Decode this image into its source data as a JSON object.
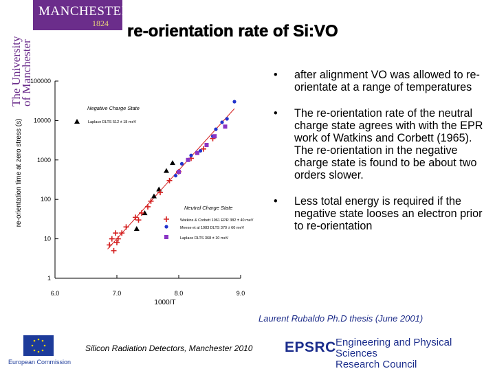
{
  "header": {
    "logo_main": "MANCHESTER",
    "logo_year": "1824",
    "vertical_text_1": "The University",
    "vertical_text_2": "of Manchester",
    "title": "re-orientation rate of Si:VO"
  },
  "bullets": [
    "after alignment VO was allowed to re-orientate at a range of temperatures",
    "The re-orientation rate of the neutral charge state agrees with with the EPR work of Watkins and Corbett (1965). The re-orientation in the negative charge state is found to be about two orders slower.",
    "Less total energy is required if the negative state looses an electron prior to re-orientation"
  ],
  "bullet_marker": "•",
  "citation": "Laurent Rubaldo Ph.D thesis  (June 2001)",
  "footer": {
    "left_text": "Silicon Radiation Detectors, Manchester 2010",
    "eu_label": "European Commission",
    "epsrc_logo": "EPSRC",
    "epsrc_line1": "Engineering and Physical Sciences",
    "epsrc_line2": "Research Council"
  },
  "chart_data": {
    "type": "scatter",
    "xlabel": "1000/T",
    "ylabel": "re-orientation time at zero stress (s)",
    "xlim": [
      6.0,
      9.0
    ],
    "ylim": [
      1,
      100000
    ],
    "y_log": true,
    "x_ticks": [
      "6.0",
      "7.0",
      "8.0",
      "9.0"
    ],
    "y_ticks": [
      "1",
      "10",
      "100",
      "1000",
      "10000",
      "100000"
    ],
    "annotations": {
      "negative_label": "Negative Charge State",
      "negative_legend": "Laplace DLTS 512 ± 18 meV",
      "neutral_label": "Neutral Charge State"
    },
    "colors": {
      "neg": "#000000",
      "watkins": "#d42020",
      "meese": "#2233cc",
      "laplace": "#8a35c4",
      "fit": "#d42020"
    },
    "series": [
      {
        "name": "Laplace DLTS 512 ± 18 meV",
        "marker": "triangle",
        "color": "#000000",
        "points": [
          [
            7.32,
            18
          ],
          [
            7.45,
            45
          ],
          [
            7.6,
            120
          ],
          [
            7.68,
            180
          ],
          [
            7.9,
            840
          ],
          [
            7.8,
            530
          ]
        ]
      },
      {
        "name": "Watkins & Corbett 1961 EPR 382 ± 40 meV",
        "marker": "plus",
        "color": "#d42020",
        "points": [
          [
            6.88,
            7
          ],
          [
            6.92,
            10
          ],
          [
            6.95,
            5
          ],
          [
            6.98,
            14
          ],
          [
            7.0,
            8
          ],
          [
            7.02,
            10
          ],
          [
            7.08,
            14
          ],
          [
            7.15,
            20
          ],
          [
            7.3,
            35
          ],
          [
            7.35,
            30
          ],
          [
            7.4,
            45
          ],
          [
            7.5,
            65
          ],
          [
            7.55,
            90
          ],
          [
            7.7,
            150
          ],
          [
            7.85,
            300
          ],
          [
            8.0,
            500
          ],
          [
            8.2,
            1100
          ],
          [
            8.4,
            1900
          ],
          [
            8.55,
            3500
          ]
        ]
      },
      {
        "name": "Meese et al 1983 DLTS 370 ± 60 meV",
        "marker": "circle",
        "color": "#2233cc",
        "points": [
          [
            7.95,
            400
          ],
          [
            8.05,
            800
          ],
          [
            8.2,
            1300
          ],
          [
            8.35,
            1700
          ],
          [
            8.55,
            4000
          ],
          [
            8.6,
            6000
          ],
          [
            8.7,
            9000
          ],
          [
            8.78,
            11000
          ],
          [
            8.9,
            30000
          ]
        ]
      },
      {
        "name": "Laplace DLTS 368 ± 10 meV",
        "marker": "square",
        "color": "#8a35c4",
        "points": [
          [
            8.0,
            500
          ],
          [
            8.15,
            1000
          ],
          [
            8.3,
            1500
          ],
          [
            8.45,
            2400
          ],
          [
            8.58,
            4000
          ],
          [
            8.75,
            7000
          ]
        ]
      }
    ],
    "fit_line": [
      [
        6.85,
        5.5
      ],
      [
        8.9,
        20000
      ]
    ]
  }
}
